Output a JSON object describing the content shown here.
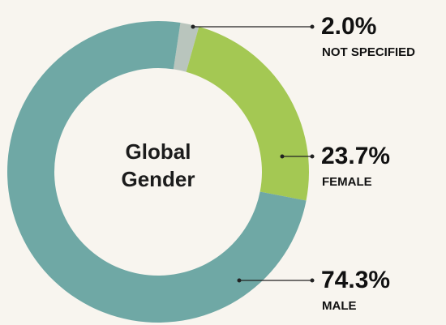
{
  "chart_data": {
    "type": "donut",
    "title": "Global Gender",
    "categories": [
      "NOT SPECIFIED",
      "FEMALE",
      "MALE"
    ],
    "values": [
      2.0,
      23.7,
      74.3
    ],
    "value_labels": [
      "2.0%",
      "23.7%",
      "74.3%"
    ],
    "colors": [
      "#b9c5bd",
      "#a4c853",
      "#6fa8a5"
    ]
  }
}
